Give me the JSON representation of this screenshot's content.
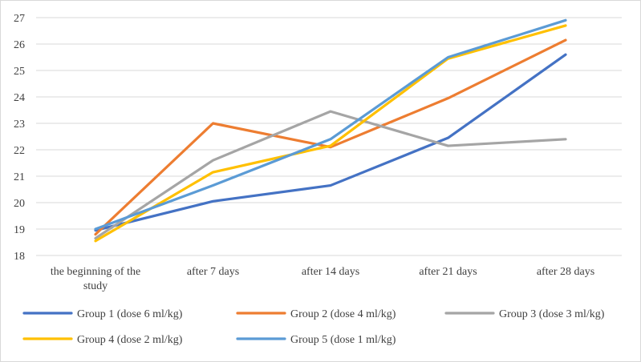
{
  "chart_data": {
    "type": "line",
    "title": "",
    "xlabel": "",
    "ylabel": "",
    "ylim": [
      18,
      27
    ],
    "yticks": [
      18,
      19,
      20,
      21,
      22,
      23,
      24,
      25,
      26,
      27
    ],
    "grid": true,
    "legend_position": "bottom",
    "categories": [
      [
        "the beginning of the",
        "study"
      ],
      [
        "after 7 days"
      ],
      [
        "after 14 days"
      ],
      [
        "after 21 days"
      ],
      [
        "after 28 days"
      ]
    ],
    "series": [
      {
        "name": "Group 1 (dose 6 ml/kg)",
        "color": "#4472c4",
        "values": [
          18.95,
          20.05,
          20.65,
          22.45,
          25.6
        ]
      },
      {
        "name": "Group 2 (dose 4 ml/kg)",
        "color": "#ed7d31",
        "values": [
          18.8,
          23.0,
          22.1,
          23.95,
          26.15
        ]
      },
      {
        "name": "Group 3 (dose 3 ml/kg)",
        "color": "#a5a5a5",
        "values": [
          18.65,
          21.6,
          23.45,
          22.15,
          22.4
        ]
      },
      {
        "name": "Group 4 (dose 2 ml/kg)",
        "color": "#ffc000",
        "values": [
          18.55,
          21.15,
          22.15,
          25.45,
          26.7
        ]
      },
      {
        "name": "Group 5 (dose 1 ml/kg)",
        "color": "#5b9bd5",
        "values": [
          19.0,
          20.65,
          22.4,
          25.5,
          26.9
        ]
      }
    ]
  }
}
